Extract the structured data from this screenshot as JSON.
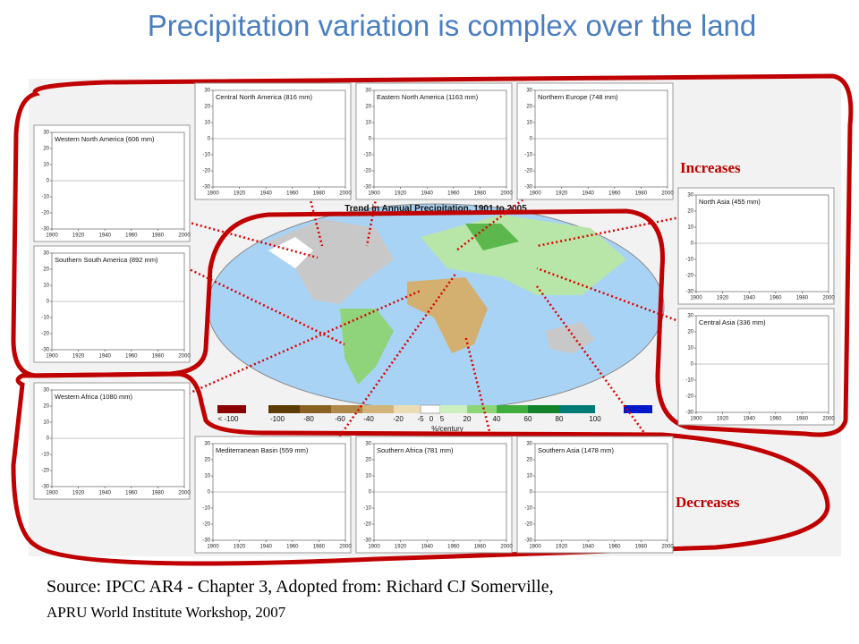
{
  "title": "Precipitation variation is complex over the land",
  "figure": {
    "map_title": "Trend in Annual Precipitation, 1901 to 2005",
    "legend": {
      "labels": [
        "< -100",
        "-100",
        "-80",
        "-60",
        "-40",
        "-20",
        "-5",
        "0",
        "5",
        "20",
        "40",
        "60",
        "80",
        "100"
      ],
      "unit": "%/century"
    },
    "panel_yticks": [
      30,
      20,
      10,
      0,
      -10,
      -20,
      -30
    ],
    "panel_xticks": [
      1900,
      1920,
      1940,
      1960,
      1980,
      2000
    ],
    "panels": [
      {
        "title": "Western North America (606 mm)"
      },
      {
        "title": "Central North America (816 mm)"
      },
      {
        "title": "Eastern North America (1163 mm)"
      },
      {
        "title": "Northern Europe (748 mm)"
      },
      {
        "title": "Southern South America (892 mm)"
      },
      {
        "title": "North Asia (455 mm)"
      },
      {
        "title": "Central Asia (336 mm)"
      },
      {
        "title": "Western Africa (1080 mm)"
      },
      {
        "title": "Mediterranean Basin (559 mm)"
      },
      {
        "title": "Southern Africa (781 mm)"
      },
      {
        "title": "Southern Asia (1478 mm)"
      }
    ]
  },
  "annotations": {
    "increases": "Increases",
    "decreases": "Decreases"
  },
  "source": {
    "line1": "Source: IPCC AR4 - Chapter 3, Adopted from: Richard CJ Somerville,",
    "line2": "APRU World Institute Workshop, 2007"
  }
}
